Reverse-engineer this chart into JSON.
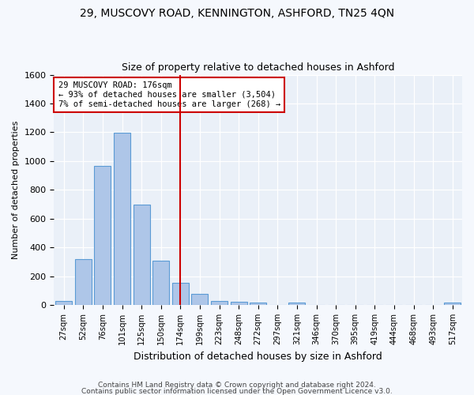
{
  "title": "29, MUSCOVY ROAD, KENNINGTON, ASHFORD, TN25 4QN",
  "subtitle": "Size of property relative to detached houses in Ashford",
  "xlabel": "Distribution of detached houses by size in Ashford",
  "ylabel": "Number of detached properties",
  "bin_labels": [
    "27sqm",
    "52sqm",
    "76sqm",
    "101sqm",
    "125sqm",
    "150sqm",
    "174sqm",
    "199sqm",
    "223sqm",
    "248sqm",
    "272sqm",
    "297sqm",
    "321sqm",
    "346sqm",
    "370sqm",
    "395sqm",
    "419sqm",
    "444sqm",
    "468sqm",
    "493sqm",
    "517sqm"
  ],
  "bar_heights": [
    30,
    320,
    965,
    1195,
    700,
    305,
    155,
    75,
    30,
    20,
    15,
    0,
    15,
    0,
    0,
    0,
    0,
    0,
    0,
    0,
    15
  ],
  "bar_color": "#aec6e8",
  "bar_edge_color": "#5b9bd5",
  "vline_x_index": 6,
  "vline_color": "#cc0000",
  "annotation_line1": "29 MUSCOVY ROAD: 176sqm",
  "annotation_line2": "← 93% of detached houses are smaller (3,504)",
  "annotation_line3": "7% of semi-detached houses are larger (268) →",
  "annotation_box_color": "#ffffff",
  "annotation_box_edge_color": "#cc0000",
  "ylim": [
    0,
    1600
  ],
  "yticks": [
    0,
    200,
    400,
    600,
    800,
    1000,
    1200,
    1400,
    1600
  ],
  "footer1": "Contains HM Land Registry data © Crown copyright and database right 2024.",
  "footer2": "Contains public sector information licensed under the Open Government Licence v3.0.",
  "bg_color": "#f5f8fd",
  "plot_bg_color": "#eaf0f8"
}
